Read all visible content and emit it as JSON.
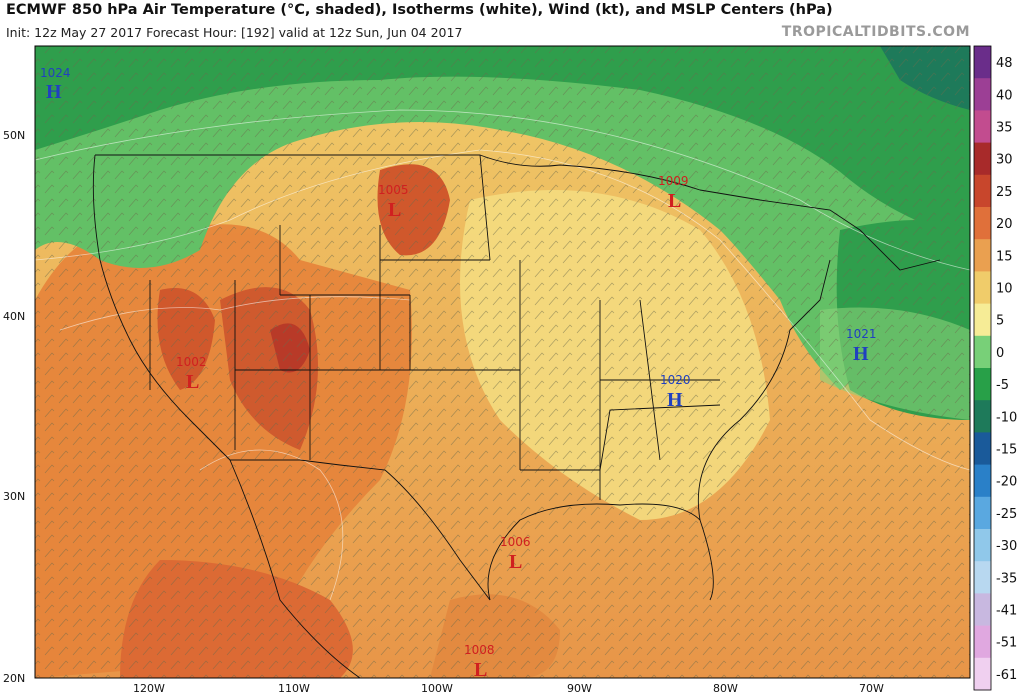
{
  "header": {
    "title": "ECMWF 850 hPa Air Temperature (°C, shaded), Isotherms (white), Wind (kt), and MSLP Centers (hPa)",
    "subtitle": "Init: 12z May 27 2017   Forecast Hour: [192]   valid at 12z Sun, Jun 04 2017",
    "credit": "TROPICALTIDBITS.COM"
  },
  "axes": {
    "lat_labels": [
      "50N",
      "40N",
      "30N",
      "20N"
    ],
    "lon_labels": [
      "120W",
      "110W",
      "100W",
      "90W",
      "80W",
      "70W"
    ]
  },
  "colorbar": {
    "labels": [
      "48",
      "40",
      "35",
      "30",
      "25",
      "20",
      "15",
      "10",
      "5",
      "0",
      "-5",
      "-10",
      "-15",
      "-20",
      "-25",
      "-30",
      "-35",
      "-41",
      "-51",
      "-61"
    ],
    "colors": [
      "#6a2d8a",
      "#9c3f95",
      "#c24c8f",
      "#a82a2a",
      "#c8462c",
      "#e0703a",
      "#eaa050",
      "#f0cc6a",
      "#f6ec96",
      "#78d078",
      "#28a048",
      "#1e7a5a",
      "#1a5a9a",
      "#2a80c8",
      "#5aa8e0",
      "#90c8ea",
      "#b8d8f0",
      "#c8b8e0",
      "#e0a8e0",
      "#f0d0f0"
    ]
  },
  "pressure_centers": [
    {
      "type": "H",
      "value": "1024",
      "color": "#2040c0"
    },
    {
      "type": "L",
      "value": "1005",
      "color": "#d02020"
    },
    {
      "type": "L",
      "value": "1009",
      "color": "#d02020"
    },
    {
      "type": "L",
      "value": "1002",
      "color": "#d02020"
    },
    {
      "type": "H",
      "value": "1021",
      "color": "#2040c0"
    },
    {
      "type": "H",
      "value": "1020",
      "color": "#2040c0"
    },
    {
      "type": "L",
      "value": "1006",
      "color": "#d02020"
    },
    {
      "type": "L",
      "value": "1008",
      "color": "#d02020"
    }
  ]
}
